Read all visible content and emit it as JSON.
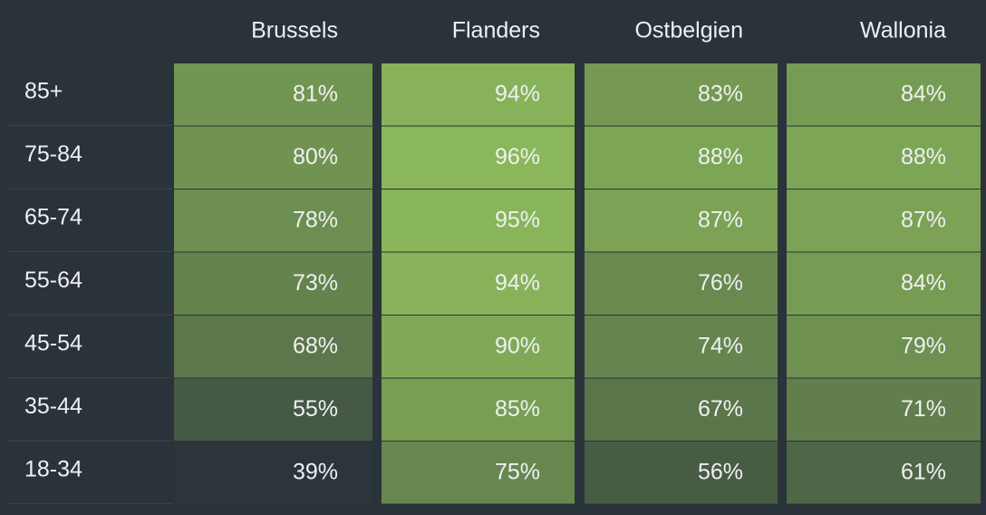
{
  "chart_data": {
    "type": "heatmap",
    "columns": [
      "Brussels",
      "Flanders",
      "Ostbelgien",
      "Wallonia"
    ],
    "rows": [
      "85+",
      "75-84",
      "65-74",
      "55-64",
      "45-54",
      "35-44",
      "18-34"
    ],
    "values": [
      [
        81,
        94,
        83,
        84
      ],
      [
        80,
        96,
        88,
        88
      ],
      [
        78,
        95,
        87,
        87
      ],
      [
        73,
        94,
        76,
        84
      ],
      [
        68,
        90,
        74,
        79
      ],
      [
        55,
        85,
        67,
        71
      ],
      [
        39,
        75,
        56,
        61
      ]
    ],
    "value_labels": [
      [
        "81%",
        "94%",
        "83%",
        "84%"
      ],
      [
        "80%",
        "96%",
        "88%",
        "88%"
      ],
      [
        "78%",
        "95%",
        "87%",
        "87%"
      ],
      [
        "73%",
        "94%",
        "76%",
        "84%"
      ],
      [
        "68%",
        "90%",
        "74%",
        "79%"
      ],
      [
        "55%",
        "85%",
        "67%",
        "71%"
      ],
      [
        "39%",
        "75%",
        "56%",
        "61%"
      ]
    ],
    "colors": [
      "#2c353b",
      "#8ab75a"
    ]
  }
}
